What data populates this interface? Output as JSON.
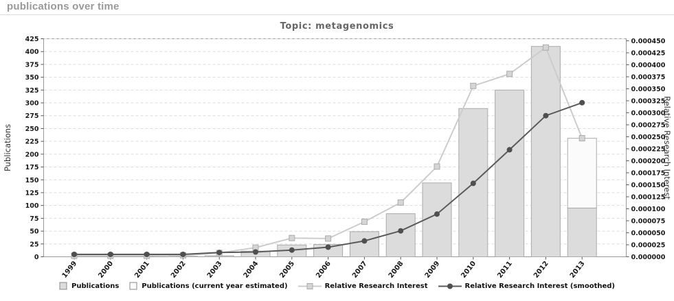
{
  "header": {
    "title": "publications over time"
  },
  "chart_data": {
    "type": "bar",
    "title": "Topic: metagenomics",
    "categories": [
      "1999",
      "2000",
      "2001",
      "2002",
      "2003",
      "2004",
      "2005",
      "2006",
      "2007",
      "2008",
      "2009",
      "2010",
      "2011",
      "2012",
      "2013"
    ],
    "series": [
      {
        "name": "Publications",
        "type": "bar",
        "axis": "left",
        "values": [
          0,
          0,
          0,
          1,
          2,
          11,
          23,
          24,
          49,
          84,
          144,
          289,
          325,
          410,
          95
        ]
      },
      {
        "name": "Publications (current year estimated)",
        "type": "bar-stacked-estimate",
        "axis": "left",
        "values": [
          null,
          null,
          null,
          null,
          null,
          null,
          null,
          null,
          null,
          null,
          null,
          null,
          null,
          null,
          231
        ]
      },
      {
        "name": "Relative Research Interest",
        "type": "line",
        "axis": "right",
        "values": [
          2e-06,
          2e-06,
          2e-06,
          3e-06,
          8e-06,
          1.9e-05,
          3.9e-05,
          3.8e-05,
          7.3e-05,
          0.000113,
          0.000188,
          0.000356,
          0.000381,
          0.000436,
          0.000247
        ]
      },
      {
        "name": "Relative Research Interest (smoothed)",
        "type": "line",
        "axis": "right",
        "values": [
          5e-06,
          5e-06,
          5e-06,
          5e-06,
          9e-06,
          1e-05,
          1.4e-05,
          2e-05,
          3.3e-05,
          5.4e-05,
          8.9e-05,
          0.000153,
          0.000223,
          0.000294,
          0.000321
        ]
      }
    ],
    "left_axis": {
      "label": "Publications",
      "min": 0,
      "max": 425,
      "step": 25
    },
    "right_axis": {
      "label": "Relative Research Interest",
      "min": 0,
      "max": 0.00045,
      "step": 2.5e-05,
      "decimals": 6
    },
    "grid": "dashed-horizontal",
    "legend_position": "bottom"
  },
  "legend": {
    "items": [
      {
        "label": "Publications",
        "swatch": "bar-solid"
      },
      {
        "label": "Publications (current year estimated)",
        "swatch": "bar-empty"
      },
      {
        "label": "Relative Research Interest",
        "swatch": "line-square"
      },
      {
        "label": "Relative Research Interest (smoothed)",
        "swatch": "line-circle"
      }
    ]
  },
  "colors": {
    "header_text": "#999999",
    "title_text": "#666666",
    "bar_fill": "#dcdcdc",
    "bar_border": "#aaaaaa",
    "bar_estimated_fill": "#fbfbfb",
    "rri_line": "#cccccc",
    "rri_marker_fill": "#d5d5d5",
    "rri_marker_border": "#ababab",
    "smoothed_line": "#5a5a5a",
    "smoothed_marker": "#4f4f4f",
    "grid_line": "#dddddd",
    "axis_frame": "#999999",
    "tick_color": "#555555"
  }
}
